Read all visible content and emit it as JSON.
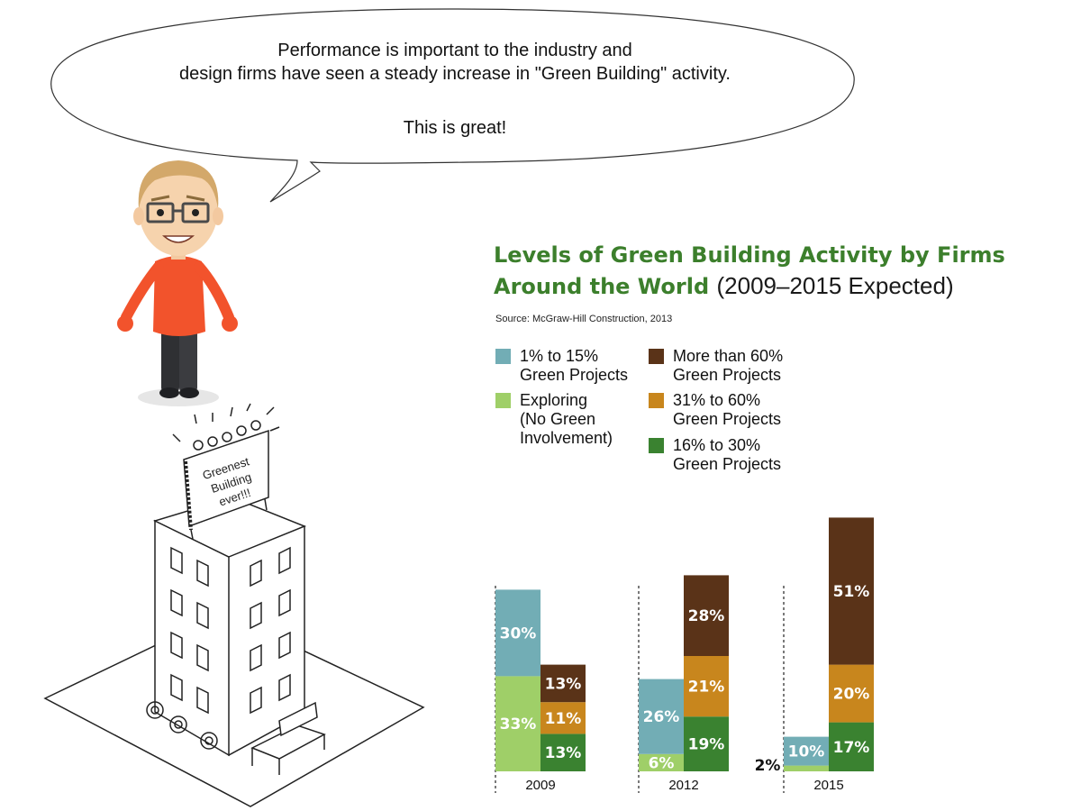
{
  "speech": {
    "line1": "Performance is important to the industry and",
    "line2": "design firms have seen a steady increase in \"Green Building\" activity.",
    "line3": "This is great!"
  },
  "sign_text": [
    "Greenest",
    "Building",
    "ever!!!"
  ],
  "chart_data": {
    "type": "bar",
    "title": "Levels of Green Building Activity by Firms Around the World",
    "title_part1": "Levels of Green Building Activity by Firms",
    "title_part2": "Around the World",
    "title_suffix": "(2009–2015 Expected)",
    "source": "Source: McGraw-Hill Construction, 2013",
    "categories": [
      "2009",
      "2012",
      "2015"
    ],
    "legend": [
      {
        "key": "low",
        "label": "1% to 15%\nGreen Projects",
        "color": "#72adb5"
      },
      {
        "key": "exploring",
        "label": "Exploring\n(No Green\nInvolvement)",
        "color": "#9fcf68"
      },
      {
        "key": "high",
        "label": "More than 60%\nGreen Projects",
        "color": "#5a3318"
      },
      {
        "key": "midhigh",
        "label": "31% to 60%\nGreen Projects",
        "color": "#c8861d"
      },
      {
        "key": "mid",
        "label": "16% to 30%\nGreen Projects",
        "color": "#3a8230"
      }
    ],
    "groups": [
      {
        "year": "2009",
        "left_stack": [
          {
            "key": "exploring",
            "value": 33,
            "label": "33%"
          },
          {
            "key": "low",
            "value": 30,
            "label": "30%"
          }
        ],
        "right_stack": [
          {
            "key": "mid",
            "value": 13,
            "label": "13%"
          },
          {
            "key": "midhigh",
            "value": 11,
            "label": "11%"
          },
          {
            "key": "high",
            "value": 13,
            "label": "13%"
          }
        ]
      },
      {
        "year": "2012",
        "left_stack": [
          {
            "key": "exploring",
            "value": 6,
            "label": "6%"
          },
          {
            "key": "low",
            "value": 26,
            "label": "26%"
          }
        ],
        "right_stack": [
          {
            "key": "mid",
            "value": 19,
            "label": "19%"
          },
          {
            "key": "midhigh",
            "value": 21,
            "label": "21%"
          },
          {
            "key": "high",
            "value": 28,
            "label": "28%"
          }
        ]
      },
      {
        "year": "2015",
        "left_stack": [
          {
            "key": "exploring",
            "value": 2,
            "label": "2%",
            "label_outside": true
          },
          {
            "key": "low",
            "value": 10,
            "label": "10%"
          }
        ],
        "right_stack": [
          {
            "key": "mid",
            "value": 17,
            "label": "17%"
          },
          {
            "key": "midhigh",
            "value": 20,
            "label": "20%"
          },
          {
            "key": "high",
            "value": 51,
            "label": "51%"
          }
        ]
      }
    ]
  }
}
